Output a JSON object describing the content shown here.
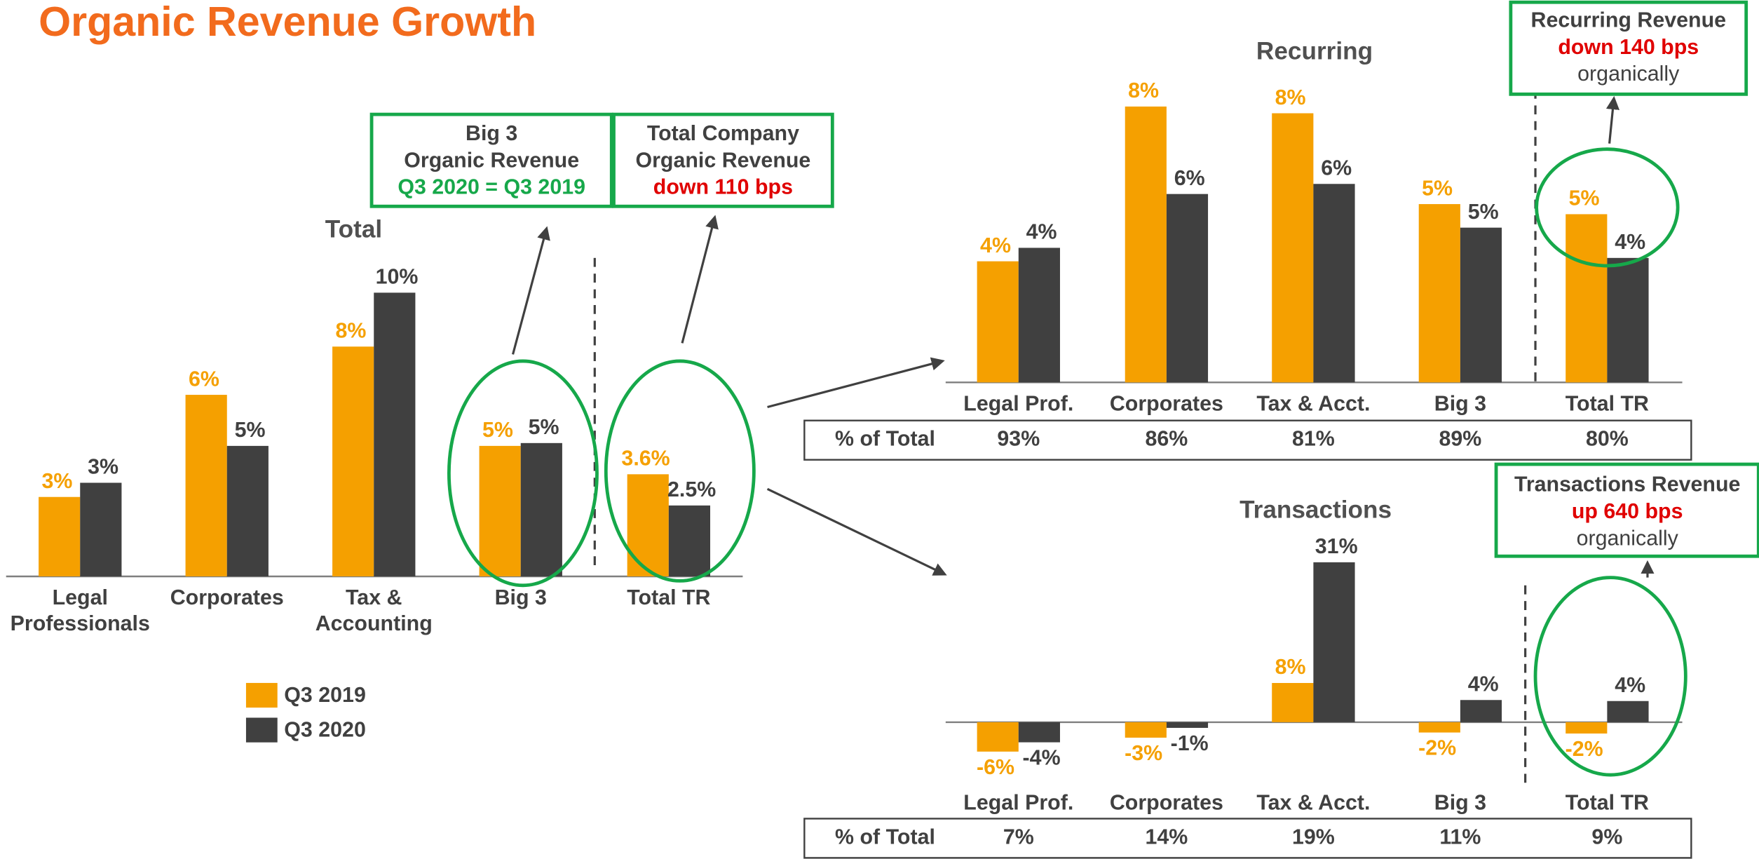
{
  "title": "Organic Revenue Growth",
  "chart_data": [
    {
      "type": "bar",
      "title": "Total",
      "categories": [
        "Legal Professionals",
        "Corporates",
        "Tax & Accounting",
        "Big 3",
        "Total TR"
      ],
      "series": [
        {
          "name": "Q3 2019",
          "color": "#f5a000",
          "values": [
            2.8,
            6.4,
            8.1,
            4.6,
            3.6
          ],
          "value_labels": [
            "3%",
            "6%",
            "8%",
            "5%",
            "3.6%"
          ]
        },
        {
          "name": "Q3 2020",
          "color": "#404040",
          "values": [
            3.3,
            4.6,
            10,
            4.7,
            2.5
          ],
          "value_labels": [
            "3%",
            "5%",
            "10%",
            "5%",
            "2.5%"
          ]
        }
      ],
      "callouts": [
        [
          "Big 3",
          "Organic Revenue",
          "Q3 2020 = Q3 2019"
        ],
        [
          "Total Company",
          "Organic Revenue",
          "down 110 bps"
        ]
      ]
    },
    {
      "type": "bar",
      "title": "Recurring",
      "categories": [
        "Legal Prof.",
        "Corporates",
        "Tax & Acct.",
        "Big 3",
        "Total TR"
      ],
      "series": [
        {
          "color": "#f5a000",
          "values": [
            3.6,
            8.2,
            8.0,
            5.3,
            5.0
          ],
          "value_labels": [
            "4%",
            "8%",
            "8%",
            "5%",
            "5%"
          ]
        },
        {
          "color": "#404040",
          "values": [
            4.0,
            5.6,
            5.9,
            4.6,
            3.7
          ],
          "value_labels": [
            "4%",
            "6%",
            "6%",
            "5%",
            "4%"
          ]
        }
      ],
      "table": {
        "label": "% of Total",
        "values": [
          93,
          86,
          81,
          89,
          80
        ],
        "value_labels": [
          "93%",
          "86%",
          "81%",
          "89%",
          "80%"
        ]
      },
      "callouts": [
        [
          "Recurring Revenue",
          "down 140 bps",
          "organically"
        ]
      ]
    },
    {
      "type": "bar",
      "title": "Transactions",
      "categories": [
        "Legal Prof.",
        "Corporates",
        "Tax & Acct.",
        "Big 3",
        "Total TR"
      ],
      "series": [
        {
          "color": "#f5a000",
          "values": [
            -5.7,
            -3,
            7.6,
            -2,
            -2.2
          ],
          "value_labels": [
            "-6%",
            "-3%",
            "8%",
            "-2%",
            "-2%"
          ]
        },
        {
          "color": "#404040",
          "values": [
            -3.9,
            -1.1,
            31,
            4.3,
            4.1
          ],
          "value_labels": [
            "-4%",
            "-1%",
            "31%",
            "4%",
            "4%"
          ]
        }
      ],
      "table": {
        "label": "% of Total",
        "values": [
          7,
          14,
          19,
          11,
          9
        ],
        "value_labels": [
          "7%",
          "14%",
          "19%",
          "11%",
          "9%"
        ]
      },
      "callouts": [
        [
          "Transactions Revenue",
          "up 640 bps",
          "organically"
        ]
      ]
    }
  ]
}
